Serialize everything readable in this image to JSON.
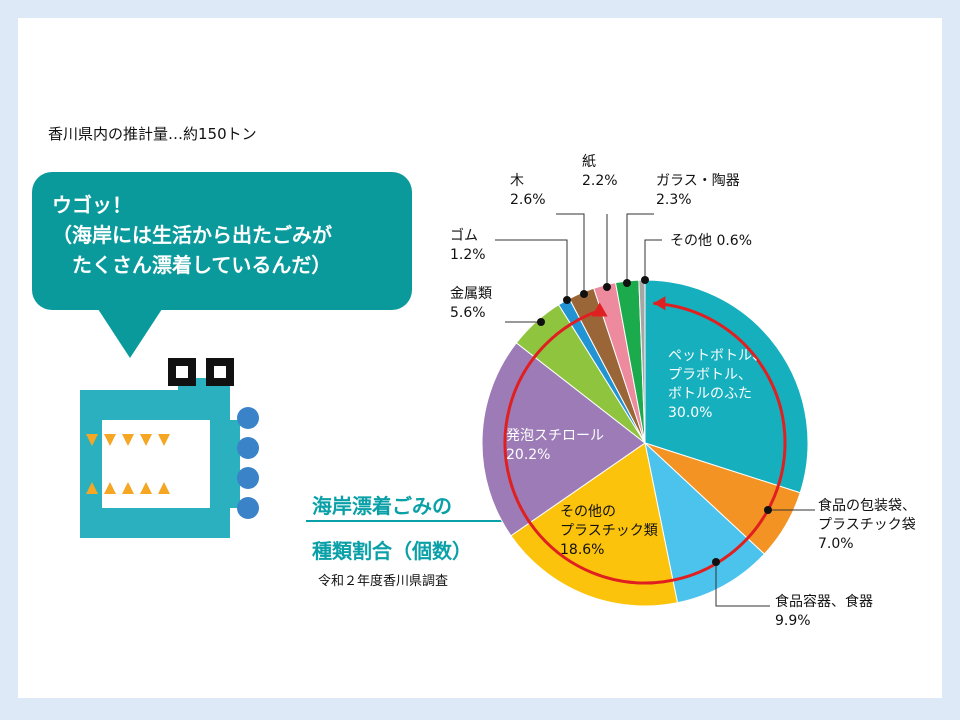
{
  "estimate_text": "香川県内の推計量…約150トン",
  "bubble_text": "ウゴッ！\n（海岸には生活から出たごみが\n　たくさん漂着しているんだ）",
  "title_line1": "海岸漂着ごみの",
  "title_line2": "種類割合（個数）",
  "survey_note": "令和２年度香川県調査",
  "colors": {
    "background": "#dde9f6",
    "bubble": "#0b9a9c",
    "title": "#0aa0a8",
    "arrow": "#e02020"
  },
  "icon": "creature-mascot-icon",
  "chart_data": {
    "type": "pie",
    "start_angle_deg": 0,
    "direction": "clockwise",
    "slices": [
      {
        "label": "ペットボトル、\nプラボトル、\nボトルのふた",
        "value": 30.0,
        "value_text": "30.0%",
        "color": "#15afbd"
      },
      {
        "label": "食品の包装袋、\nプラスチック袋",
        "value": 7.0,
        "value_text": "7.0%",
        "color": "#f39323"
      },
      {
        "label": "食品容器、食器",
        "value": 9.9,
        "value_text": "9.9%",
        "color": "#4bc3ec"
      },
      {
        "label": "その他の\nプラスチック類",
        "value": 18.6,
        "value_text": "18.6%",
        "color": "#fcc30d"
      },
      {
        "label": "発泡スチロール",
        "value": 20.2,
        "value_text": "20.2%",
        "color": "#9c7bb6"
      },
      {
        "label": "金属類",
        "value": 5.6,
        "value_text": "5.6%",
        "color": "#8fc43f"
      },
      {
        "label": "ゴム",
        "value": 1.2,
        "value_text": "1.2%",
        "color": "#2394d3"
      },
      {
        "label": "木",
        "value": 2.6,
        "value_text": "2.6%",
        "color": "#9a6638"
      },
      {
        "label": "紙",
        "value": 2.2,
        "value_text": "2.2%",
        "color": "#ee8a9e"
      },
      {
        "label": "ガラス・陶器",
        "value": 2.3,
        "value_text": "2.3%",
        "color": "#1bab4c"
      },
      {
        "label": "その他",
        "value": 0.6,
        "value_text": "0.6%",
        "color": "#a6a6a6"
      }
    ]
  }
}
